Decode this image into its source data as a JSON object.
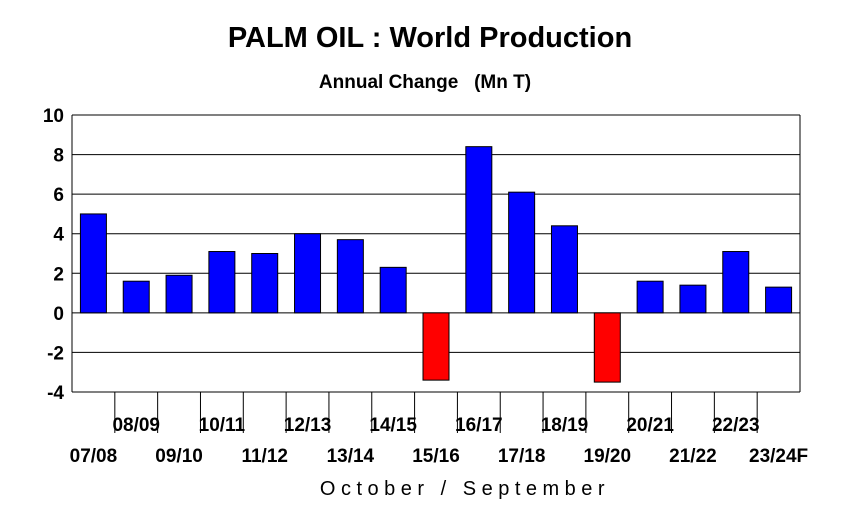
{
  "chart_data": {
    "type": "bar",
    "title": "PALM OIL : World Production",
    "subtitle": "Annual Change   (Mn T)",
    "xlabel": "October / September",
    "ylabel": "",
    "ylim": [
      -4,
      10
    ],
    "yticks": [
      10,
      8,
      6,
      4,
      2,
      0,
      -2,
      -4
    ],
    "ytick_labels": [
      "10",
      "8",
      "6",
      "4",
      "2",
      "0",
      "-2",
      "-4"
    ],
    "grid": true,
    "categories": [
      "07/08",
      "08/09",
      "09/10",
      "10/11",
      "11/12",
      "12/13",
      "13/14",
      "14/15",
      "15/16",
      "16/17",
      "17/18",
      "18/19",
      "19/20",
      "20/21",
      "21/22",
      "22/23",
      "23/24F"
    ],
    "values": [
      5.0,
      1.6,
      1.9,
      3.1,
      3.0,
      4.0,
      3.7,
      2.3,
      -3.4,
      8.4,
      6.1,
      4.4,
      -3.5,
      1.6,
      1.4,
      3.1,
      1.3
    ],
    "positive_color": "#0000ff",
    "negative_color": "#ff0000"
  }
}
